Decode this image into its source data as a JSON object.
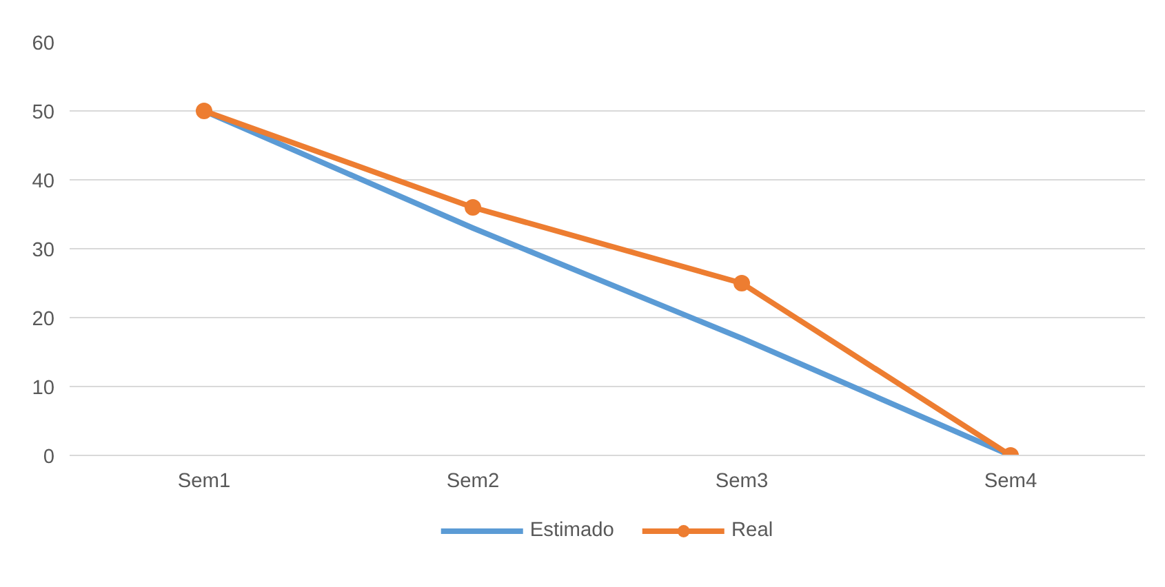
{
  "chart_data": {
    "type": "line",
    "categories": [
      "Sem1",
      "Sem2",
      "Sem3",
      "Sem4"
    ],
    "series": [
      {
        "name": "Estimado",
        "color": "#5b9bd5",
        "values": [
          50,
          33,
          17,
          0
        ],
        "marker": "none"
      },
      {
        "name": "Real",
        "color": "#ed7d31",
        "values": [
          50,
          36,
          25,
          0
        ],
        "marker": "circle"
      }
    ],
    "ylim": [
      0,
      60
    ],
    "yticks": [
      0,
      10,
      20,
      30,
      40,
      50,
      60
    ],
    "grid": "y",
    "legend": "bottom",
    "line_style": "solid"
  }
}
